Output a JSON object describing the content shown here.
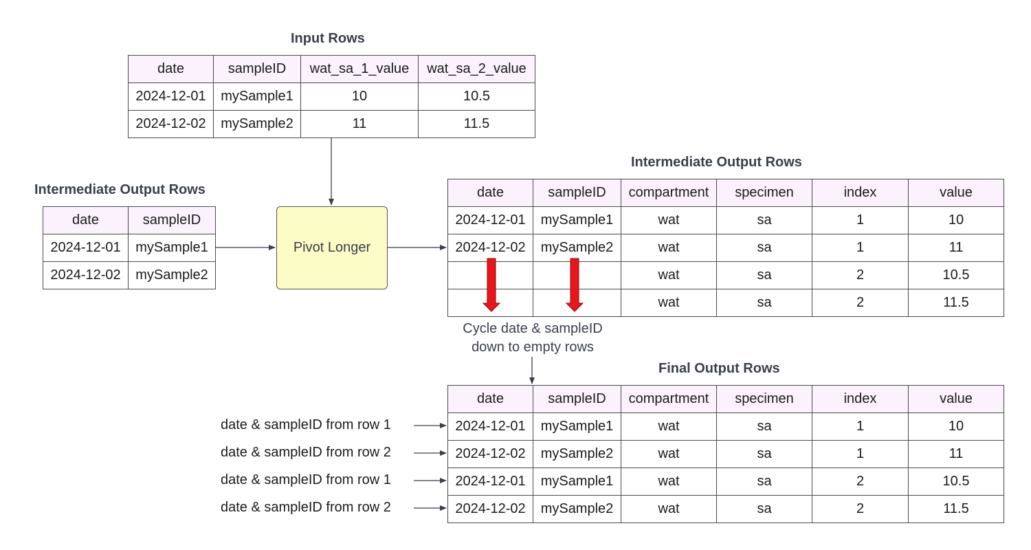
{
  "input_table": {
    "title": "Input Rows",
    "headers": [
      "date",
      "sampleID",
      "wat_sa_1_value",
      "wat_sa_2_value"
    ],
    "rows": [
      [
        "2024-12-01",
        "mySample1",
        "10",
        "10.5"
      ],
      [
        "2024-12-02",
        "mySample2",
        "11",
        "11.5"
      ]
    ]
  },
  "left_table": {
    "title": "Intermediate Output Rows",
    "headers": [
      "date",
      "sampleID"
    ],
    "rows": [
      [
        "2024-12-01",
        "mySample1"
      ],
      [
        "2024-12-02",
        "mySample2"
      ]
    ]
  },
  "pivot": {
    "label": "Pivot Longer"
  },
  "intermediate_table": {
    "title": "Intermediate Output Rows",
    "headers": [
      "date",
      "sampleID",
      "compartment",
      "specimen",
      "index",
      "value"
    ],
    "rows": [
      [
        "2024-12-01",
        "mySample1",
        "wat",
        "sa",
        "1",
        "10"
      ],
      [
        "2024-12-02",
        "mySample2",
        "wat",
        "sa",
        "1",
        "11"
      ],
      [
        "",
        "",
        "wat",
        "sa",
        "2",
        "10.5"
      ],
      [
        "",
        "",
        "wat",
        "sa",
        "2",
        "11.5"
      ]
    ]
  },
  "cycle_note": {
    "line1": "Cycle date & sampleID",
    "line2": "down to empty rows"
  },
  "final_table": {
    "title": "Final Output Rows",
    "headers": [
      "date",
      "sampleID",
      "compartment",
      "specimen",
      "index",
      "value"
    ],
    "rows": [
      [
        "2024-12-01",
        "mySample1",
        "wat",
        "sa",
        "1",
        "10"
      ],
      [
        "2024-12-02",
        "mySample2",
        "wat",
        "sa",
        "1",
        "11"
      ],
      [
        "2024-12-01",
        "mySample1",
        "wat",
        "sa",
        "2",
        "10.5"
      ],
      [
        "2024-12-02",
        "mySample2",
        "wat",
        "sa",
        "2",
        "11.5"
      ]
    ]
  },
  "row_labels": [
    "date & sampleID from row 1",
    "date & sampleID from row 2",
    "date & sampleID from row 1",
    "date & sampleID from row 2"
  ],
  "colors": {
    "header_bg": "#fbf2fd",
    "pivot_bg": "#fcfcc6",
    "red_arrow": "#e8161b",
    "connector": "#3a3f4a"
  }
}
